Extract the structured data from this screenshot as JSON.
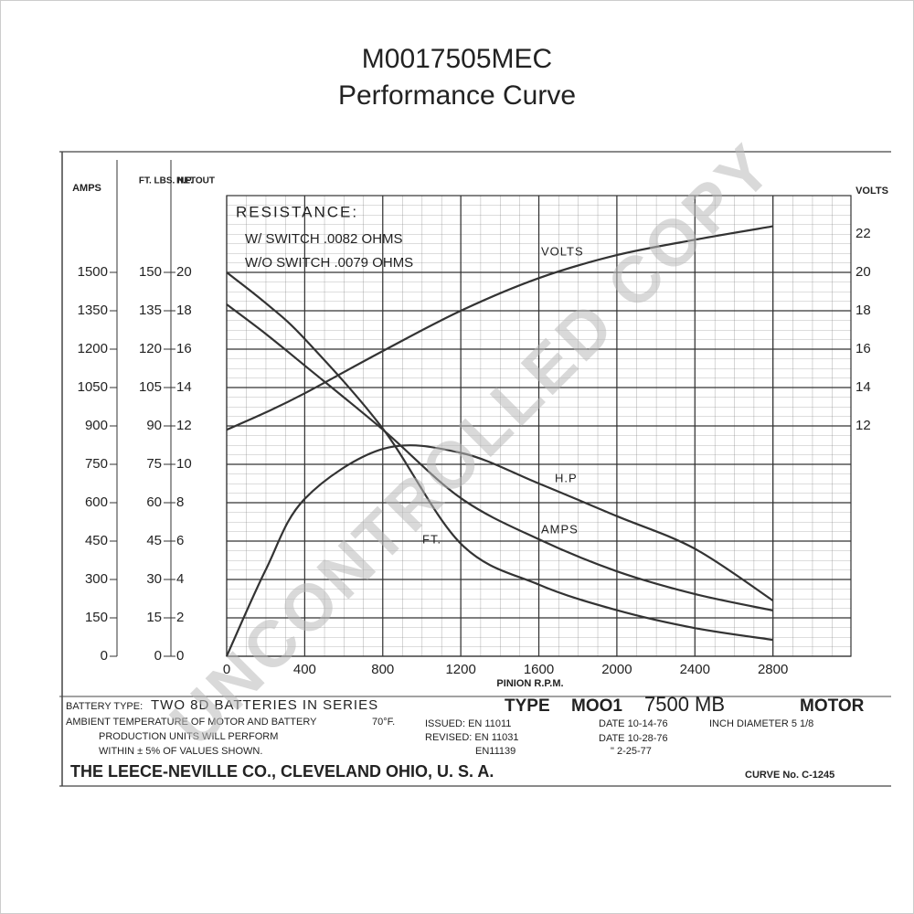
{
  "chart_data": {
    "type": "line",
    "title": "M0017505MEC",
    "subtitle": "Performance Curve",
    "x_label": "PINION R.P.M.",
    "x": [
      0,
      200,
      400,
      800,
      1200,
      1600,
      2000,
      2400,
      2800
    ],
    "xlim": [
      0,
      3200
    ],
    "xticks": [
      0,
      400,
      800,
      1200,
      1600,
      2000,
      2400,
      2800
    ],
    "y_axes": [
      {
        "label": "AMPS",
        "lim": [
          0,
          1800
        ],
        "ticks": [
          0,
          150,
          300,
          450,
          600,
          750,
          900,
          1050,
          1200,
          1350,
          1500
        ]
      },
      {
        "label": "FT. LBS. NET",
        "lim": [
          0,
          180
        ],
        "ticks": [
          0,
          15,
          30,
          45,
          60,
          75,
          90,
          105,
          120,
          135,
          150
        ]
      },
      {
        "label": "H.P. OUT",
        "lim": [
          0,
          24
        ],
        "ticks": [
          0,
          2,
          4,
          6,
          8,
          10,
          12,
          14,
          16,
          18,
          20
        ]
      },
      {
        "label": "VOLTS",
        "lim": [
          0,
          24
        ],
        "ticks": [
          12,
          14,
          16,
          18,
          20,
          22
        ]
      }
    ],
    "series": [
      {
        "name": "VOLTS",
        "axis": 3,
        "color": "#333333",
        "values": [
          11.8,
          12.7,
          13.7,
          15.9,
          18.0,
          19.7,
          20.9,
          21.7,
          22.4
        ]
      },
      {
        "name": "H.P",
        "axis": 2,
        "color": "#333333",
        "values": [
          0,
          4.5,
          8.2,
          10.8,
          10.6,
          9.0,
          7.3,
          5.6,
          2.9
        ]
      },
      {
        "name": "AMPS",
        "axis": 0,
        "color": "#333333",
        "values": [
          1375,
          1260,
          1136,
          886,
          618,
          457,
          332,
          243,
          179
        ]
      },
      {
        "name": "FT.",
        "axis": 1,
        "color": "#333333",
        "values": [
          150,
          138,
          124,
          89,
          44,
          28,
          18,
          11,
          6.4
        ]
      }
    ],
    "grid": true,
    "resistance": [
      "RESISTANCE:",
      "W/ SWITCH .0082 OHMS",
      "W/O SWITCH .0079 OHMS"
    ],
    "footer": {
      "battery_label": "BATTERY TYPE:",
      "battery": "TWO 8D BATTERIES IN SERIES",
      "ambient": "AMBIENT TEMPERATURE OF MOTOR AND BATTERY",
      "temperature": "70°F.",
      "production_1": "PRODUCTION UNITS WILL PERFORM",
      "production_2": "WITHIN ± 5% OF VALUES SHOWN.",
      "type_label": "TYPE",
      "model": "MOO1",
      "model_suffix": "7500 MB",
      "motor": "MOTOR",
      "issued": "ISSUED: EN 11011",
      "revised": "REVISED: EN 11031",
      "en": "EN11139",
      "date_1": "DATE 10-14-76",
      "diameter": "INCH DIAMETER 5 1/8",
      "date_2": "DATE 10-28-76",
      "date_3": "\" 2-25-77",
      "company": "THE LEECE-NEVILLE CO., CLEVELAND OHIO, U. S. A.",
      "curve_no": "CURVE No. C-1245"
    },
    "watermark": "UNCONTROLLED COPY"
  }
}
